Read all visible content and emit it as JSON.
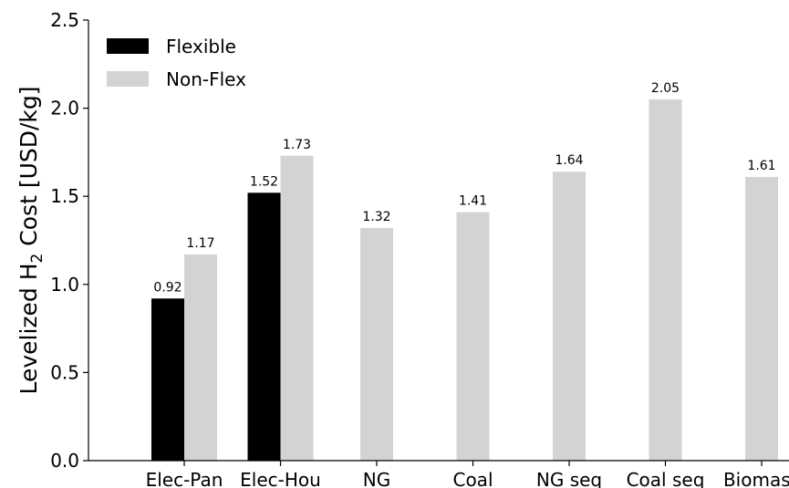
{
  "chart_data": {
    "type": "bar",
    "categories": [
      "Elec-Pan",
      "Elec-Hou",
      "NG",
      "Coal",
      "NG seq",
      "Coal seq",
      "Biomass"
    ],
    "series": [
      {
        "name": "Flexible",
        "color": "#000000",
        "values": [
          0.92,
          1.52,
          null,
          null,
          null,
          null,
          null
        ]
      },
      {
        "name": "Non-Flex",
        "color": "#d3d3d3",
        "values": [
          1.17,
          1.73,
          1.32,
          1.41,
          1.64,
          2.05,
          1.61
        ]
      }
    ],
    "data_labels": {
      "Flexible": [
        "0.92",
        "1.52",
        "",
        "",
        "",
        "",
        ""
      ],
      "Non-Flex": [
        "1.17",
        "1.73",
        "1.32",
        "1.41",
        "1.64",
        "2.05",
        "1.61"
      ]
    },
    "ylabel": "Levelized H",
    "ylabel_sub": "2",
    "ylabel_rest": " Cost [USD/kg]",
    "ylim": [
      0,
      2.5
    ],
    "yticks": [
      "0.0",
      "0.5",
      "1.0",
      "1.5",
      "2.0",
      "2.5"
    ],
    "ytick_values": [
      0,
      0.5,
      1.0,
      1.5,
      2.0,
      2.5
    ],
    "legend_location": "top-left",
    "grid": false
  }
}
